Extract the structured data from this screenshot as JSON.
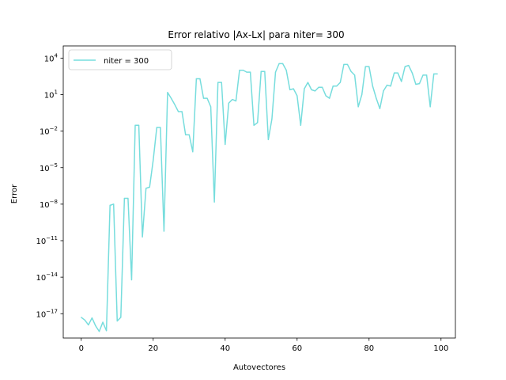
{
  "chart_data": {
    "type": "line",
    "title": "Error relativo |Ax-Lx| para niter= 300",
    "xlabel": "Autovectores",
    "ylabel": "Error",
    "yscale": "log",
    "xlim": [
      -5,
      104
    ],
    "ylim": [
      1e-19,
      100000.0
    ],
    "xticks": [
      0,
      20,
      40,
      60,
      80,
      100
    ],
    "yticks": [
      {
        "value": 1e-17,
        "base": "10",
        "exp": "−17"
      },
      {
        "value": 1e-14,
        "base": "10",
        "exp": "−14"
      },
      {
        "value": 1e-11,
        "base": "10",
        "exp": "−11"
      },
      {
        "value": 1e-08,
        "base": "10",
        "exp": "−8"
      },
      {
        "value": 1e-05,
        "base": "10",
        "exp": "−5"
      },
      {
        "value": 0.01,
        "base": "10",
        "exp": "−2"
      },
      {
        "value": 10,
        "base": "10",
        "exp": "1"
      },
      {
        "value": 10000.0,
        "base": "10",
        "exp": "4"
      }
    ],
    "grid": false,
    "legend_position": "top-left",
    "series": [
      {
        "name": "niter = 300",
        "color": "#77dddd",
        "x": [
          0,
          1,
          2,
          3,
          4,
          5,
          6,
          7,
          8,
          9,
          10,
          11,
          12,
          13,
          14,
          15,
          16,
          17,
          18,
          19,
          20,
          21,
          22,
          23,
          24,
          25,
          26,
          27,
          28,
          29,
          30,
          31,
          32,
          33,
          34,
          35,
          36,
          37,
          38,
          39,
          40,
          41,
          42,
          43,
          44,
          45,
          46,
          47,
          48,
          49,
          50,
          51,
          52,
          53,
          54,
          55,
          56,
          57,
          58,
          59,
          60,
          61,
          62,
          63,
          64,
          65,
          66,
          67,
          68,
          69,
          70,
          71,
          72,
          73,
          74,
          75,
          76,
          77,
          78,
          79,
          80,
          81,
          82,
          83,
          84,
          85,
          86,
          87,
          88,
          89,
          90,
          91,
          92,
          93,
          94,
          95,
          96,
          97,
          98,
          99
        ],
        "y": [
          5e-18,
          3e-18,
          1.2e-18,
          4.5e-18,
          1e-18,
          3.5e-19,
          2e-18,
          4e-19,
          8e-09,
          1e-08,
          2.5e-18,
          5e-18,
          3e-08,
          3e-08,
          6e-15,
          0.03,
          0.03,
          2e-11,
          2e-07,
          2.5e-07,
          4e-05,
          0.02,
          0.02,
          6e-11,
          15,
          5,
          1.5,
          0.4,
          0.4,
          0.005,
          0.005,
          0.0002,
          200,
          200,
          5,
          5,
          1,
          1.5e-08,
          100,
          100,
          0.0008,
          2,
          4,
          3,
          1000,
          1000,
          700,
          700,
          0.03,
          0.05,
          800,
          800,
          0.002,
          0.1,
          700,
          3500,
          3500,
          1000,
          25,
          30,
          8,
          0.03,
          30,
          100,
          25,
          20,
          40,
          40,
          8,
          5,
          50,
          50,
          100,
          3000,
          3000,
          800,
          400,
          1,
          10,
          2000,
          2000,
          50,
          5,
          0.7,
          20,
          60,
          50,
          600,
          600,
          120,
          2000,
          2500,
          600,
          70,
          80,
          400,
          400,
          1,
          500,
          500
        ]
      }
    ]
  }
}
